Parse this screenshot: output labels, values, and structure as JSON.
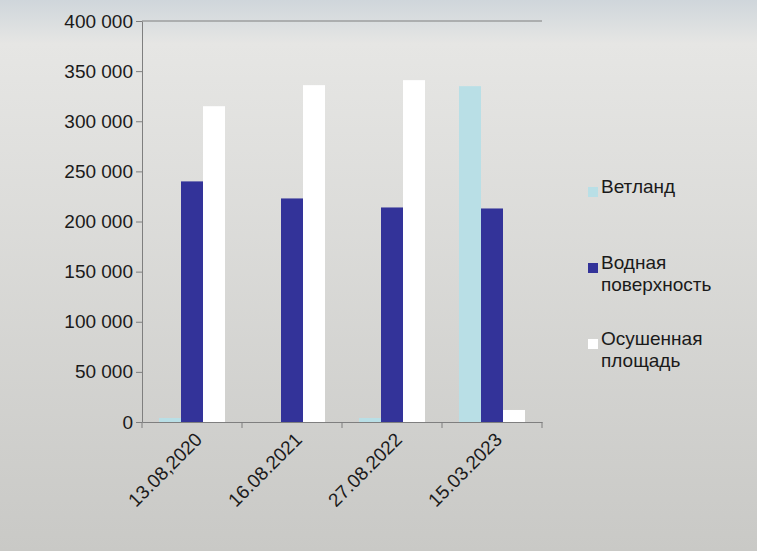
{
  "chart_data": {
    "type": "bar",
    "categories": [
      "13.08,2020",
      "16.08.2021",
      "27.08.2022",
      "15.03.2023"
    ],
    "series": [
      {
        "name": "Ветланд",
        "color": "#b9dfe6",
        "values": [
          4000,
          0,
          4000,
          335000
        ]
      },
      {
        "name": "Водная поверхность",
        "color": "#333399",
        "values": [
          240000,
          223000,
          214000,
          213000
        ]
      },
      {
        "name": "Осушенная площадь",
        "color": "#ffffff",
        "values": [
          315000,
          336000,
          341000,
          12000
        ]
      }
    ],
    "ylim": [
      0,
      400000
    ],
    "yticks": [
      0,
      {
        "value": 50000,
        "label": "50 000"
      },
      {
        "value": 100000,
        "label": "100 000"
      },
      {
        "value": 150000,
        "label": "150 000"
      },
      {
        "value": 200000,
        "label": "200 000"
      },
      {
        "value": 250000,
        "label": "250 000"
      },
      {
        "value": 300000,
        "label": "300 000"
      },
      {
        "value": 350000,
        "label": "350 000"
      },
      {
        "value": 400000,
        "label": "400 000"
      }
    ],
    "grid": false,
    "legend": "right"
  }
}
